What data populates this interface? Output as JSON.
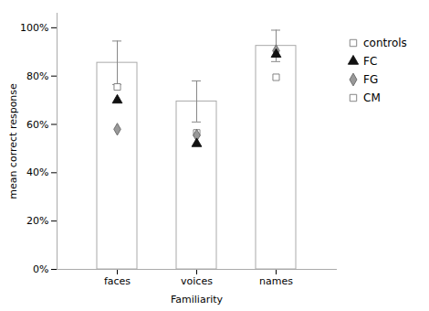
{
  "chart_data": {
    "type": "bar",
    "categories": [
      "faces",
      "voices",
      "names"
    ],
    "series": [
      {
        "name": "controls",
        "type": "bar",
        "marker": "square",
        "color": "#ffffff",
        "values": [
          0.855,
          0.695,
          0.925
        ],
        "errors": [
          0.09,
          0.085,
          0.065
        ]
      },
      {
        "name": "FC",
        "type": "scatter",
        "marker": "triangle",
        "color": "#111111",
        "values": [
          0.7,
          0.52,
          0.89
        ]
      },
      {
        "name": "FG",
        "type": "scatter",
        "marker": "diamond",
        "color": "#999999",
        "values": [
          0.58,
          0.555,
          0.905
        ]
      },
      {
        "name": "CM",
        "type": "scatter",
        "marker": "square",
        "color": "#ffffff",
        "values": [
          0.755,
          0.565,
          0.795
        ]
      }
    ],
    "xlabel": "Familiarity",
    "ylabel": "mean correct response",
    "ylim": [
      0.0,
      1.06
    ],
    "yticks": [
      {
        "value": 0.0,
        "label": "0%"
      },
      {
        "value": 0.2,
        "label": "20%"
      },
      {
        "value": 0.4,
        "label": "40%"
      },
      {
        "value": 0.6,
        "label": "60%"
      },
      {
        "value": 0.8,
        "label": "80%"
      },
      {
        "value": 1.0,
        "label": "100%"
      }
    ],
    "grid": false,
    "legend": "right"
  }
}
